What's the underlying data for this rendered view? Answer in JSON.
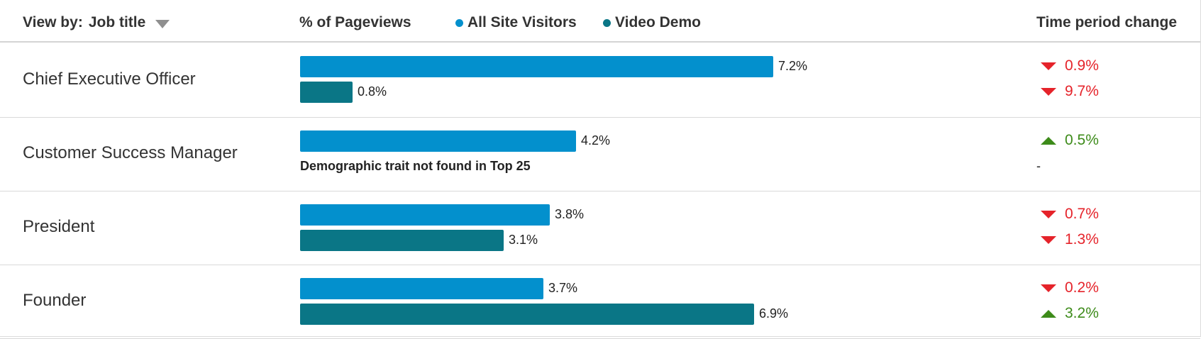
{
  "header": {
    "view_by_label": "View by:",
    "view_by_value": "Job title",
    "metric_label": "% of Pageviews",
    "time_change_label": "Time period change"
  },
  "legend": [
    {
      "name": "All Site Visitors",
      "color": "#0390cd"
    },
    {
      "name": "Video Demo",
      "color": "#0a7686"
    }
  ],
  "colors": {
    "down": "#e5232a",
    "up": "#3d8b1a"
  },
  "chart_data": {
    "type": "bar",
    "orientation": "horizontal",
    "xlabel": "% of Pageviews",
    "categories": [
      "Chief Executive Officer",
      "Customer Success Manager",
      "President",
      "Founder"
    ],
    "series": [
      {
        "name": "All Site Visitors",
        "values": [
          7.2,
          4.2,
          3.8,
          3.7
        ],
        "labels": [
          "7.2%",
          "4.2%",
          "3.8%",
          "3.7%"
        ]
      },
      {
        "name": "Video Demo",
        "values": [
          0.8,
          null,
          3.1,
          6.9
        ],
        "labels": [
          "0.8%",
          null,
          "3.1%",
          "6.9%"
        ]
      }
    ],
    "missing_note": "Demographic trait not found in Top 25",
    "time_period_change": [
      [
        {
          "direction": "down",
          "value": "0.9%"
        },
        {
          "direction": "down",
          "value": "9.7%"
        }
      ],
      [
        {
          "direction": "up",
          "value": "0.5%"
        },
        {
          "direction": "none",
          "value": "-"
        }
      ],
      [
        {
          "direction": "down",
          "value": "0.7%"
        },
        {
          "direction": "down",
          "value": "1.3%"
        }
      ],
      [
        {
          "direction": "down",
          "value": "0.2%"
        },
        {
          "direction": "up",
          "value": "3.2%"
        }
      ]
    ]
  }
}
